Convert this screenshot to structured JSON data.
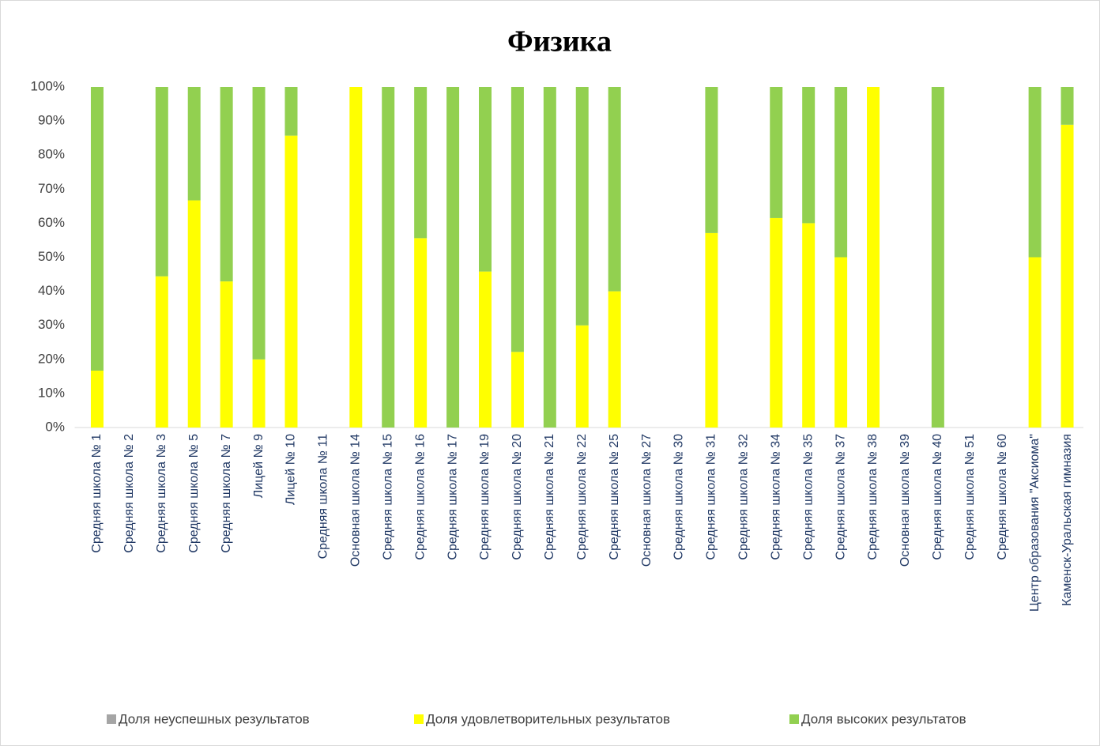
{
  "chart_data": {
    "type": "stacked_bar",
    "title": "Физика",
    "categories": [
      "Средняя школа № 1",
      "Средняя школа № 2",
      "Средняя школа № 3",
      "Средняя школа № 5",
      "Средняя школа № 7",
      "Лицей № 9",
      "Лицей № 10",
      "Средняя школа № 11",
      "Основная школа № 14",
      "Средняя школа № 15",
      "Средняя школа № 16",
      "Средняя школа № 17",
      "Средняя школа № 19",
      "Средняя школа № 20",
      "Средняя школа № 21",
      "Средняя школа № 22",
      "Средняя школа № 25",
      "Основная школа № 27",
      "Средняя школа № 30",
      "Средняя школа № 31",
      "Средняя школа № 32",
      "Средняя школа № 34",
      "Средняя школа № 35",
      "Средняя школа № 37",
      "Средняя школа № 38",
      "Основная школа № 39",
      "Средняя школа № 40",
      "Средняя школа № 51",
      "Средняя школа № 60",
      "Центр образования \"Аксиома\"",
      "Каменск-Уральская гимназия"
    ],
    "series": [
      {
        "name": "Доля неуспешных результатов",
        "color": "#a5a5a5",
        "values": [
          0,
          null,
          0,
          0,
          0,
          0,
          0,
          null,
          0,
          0,
          0,
          0,
          0,
          0,
          0,
          0,
          0,
          null,
          null,
          0,
          null,
          0,
          0,
          0,
          0,
          null,
          0,
          null,
          null,
          0,
          0
        ]
      },
      {
        "name": "Доля удовлетворительных результатов",
        "color": "#ffff00",
        "values": [
          16.7,
          null,
          44.4,
          66.7,
          42.9,
          20,
          85.7,
          null,
          100,
          0,
          55.6,
          0,
          45.8,
          22.2,
          0,
          30,
          40,
          null,
          null,
          57.1,
          null,
          61.5,
          60,
          50,
          100,
          null,
          0,
          null,
          null,
          50,
          88.9
        ]
      },
      {
        "name": "Доля высоких результатов",
        "color": "#92d050",
        "values": [
          83.3,
          null,
          55.6,
          33.3,
          57.1,
          80,
          14.3,
          null,
          0,
          100,
          44.4,
          100,
          54.2,
          77.8,
          100,
          70,
          60,
          null,
          null,
          42.9,
          null,
          38.5,
          40,
          50,
          0,
          null,
          100,
          null,
          null,
          50,
          11.1
        ]
      }
    ],
    "ylim": [
      0,
      100
    ],
    "yticks": [
      {
        "value": 0,
        "label": "0%"
      },
      {
        "value": 10,
        "label": "10%"
      },
      {
        "value": 20,
        "label": "20%"
      },
      {
        "value": 30,
        "label": "30%"
      },
      {
        "value": 40,
        "label": "40%"
      },
      {
        "value": 50,
        "label": "50%"
      },
      {
        "value": 60,
        "label": "60%"
      },
      {
        "value": 70,
        "label": "70%"
      },
      {
        "value": 80,
        "label": "80%"
      },
      {
        "value": 90,
        "label": "90%"
      },
      {
        "value": 100,
        "label": "100%"
      }
    ],
    "legend": "bottom"
  }
}
